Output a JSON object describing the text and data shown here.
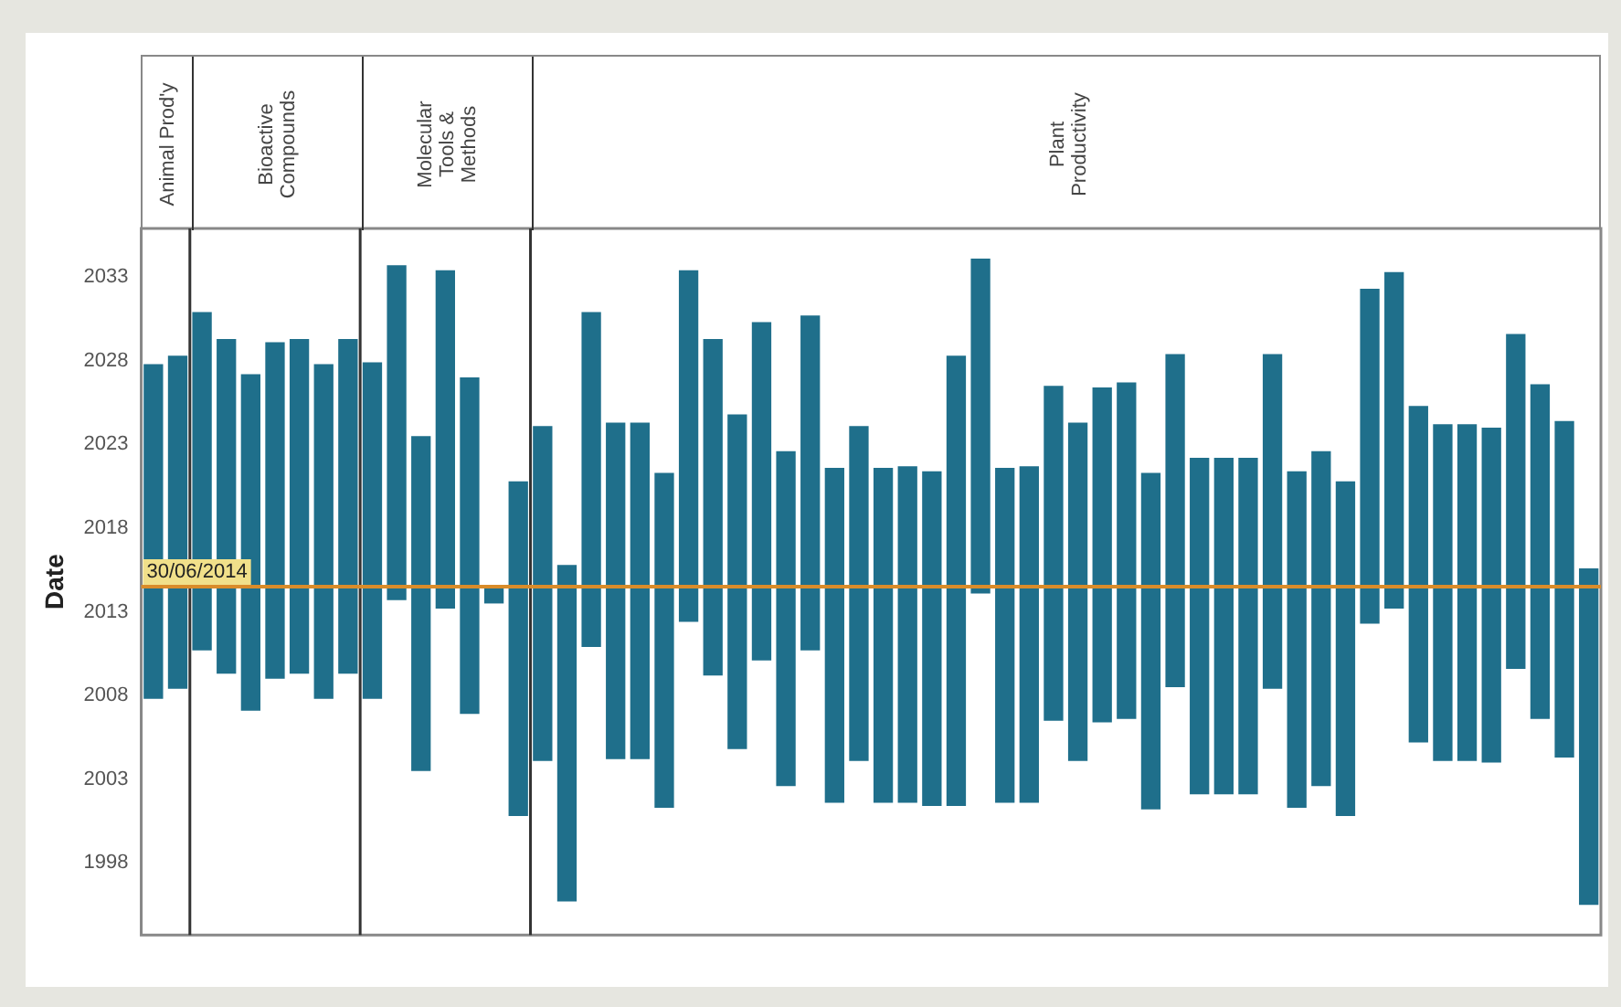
{
  "chart_data": {
    "type": "bar",
    "ylabel": "Date",
    "color": "#1f6f8b",
    "categories": [
      null,
      null,
      null,
      null,
      null,
      null,
      null,
      null,
      null,
      null,
      null,
      null,
      null,
      null,
      null,
      null,
      null,
      null,
      null,
      null,
      null,
      null,
      null,
      null,
      null,
      null,
      null,
      null,
      null,
      null,
      null,
      null,
      null,
      null,
      null,
      null,
      null,
      null,
      null,
      null,
      null,
      null,
      null,
      null,
      null,
      null,
      null,
      null,
      null,
      null,
      null,
      null,
      null,
      null,
      null,
      null,
      null,
      null,
      null,
      null
    ],
    "base": [
      2007.8,
      2008.4,
      2010.7,
      2009.3,
      2007.1,
      2009.0,
      2009.3,
      2007.8,
      2009.3,
      2007.8,
      2013.7,
      2003.5,
      2013.2,
      2006.9,
      2013.5,
      2000.8,
      2004.1,
      1995.7,
      2010.9,
      2004.2,
      2004.2,
      2001.3,
      2012.4,
      2009.2,
      2004.8,
      2010.1,
      2002.6,
      2010.7,
      2001.6,
      2004.1,
      2001.6,
      2001.6,
      2001.4,
      2001.4,
      2014.1,
      2001.6,
      2001.6,
      2006.5,
      2004.1,
      2006.4,
      2006.6,
      2001.2,
      2008.5,
      2002.1,
      2002.1,
      2002.1,
      2008.4,
      2001.3,
      2002.6,
      2000.8,
      2012.3,
      2013.2,
      2005.2,
      2004.1,
      2004.1,
      2004.0,
      2009.6,
      2006.6,
      2004.3,
      1995.5
    ],
    "values": [
      20.0,
      19.9,
      20.2,
      20.0,
      20.1,
      20.1,
      20.0,
      20.0,
      20.0,
      20.1,
      20.0,
      20.0,
      20.2,
      20.1,
      1.0,
      20.0,
      20.0,
      20.1,
      20.0,
      20.1,
      20.1,
      20.0,
      21.0,
      20.1,
      20.0,
      20.2,
      20.0,
      20.0,
      20.0,
      20.0,
      20.0,
      20.1,
      20.0,
      26.9,
      20.0,
      20.0,
      20.1,
      20.0,
      20.2,
      20.0,
      20.1,
      20.1,
      19.9,
      20.1,
      20.1,
      20.1,
      20.0,
      20.1,
      20.0,
      20.0,
      20.0,
      20.1,
      20.1,
      20.1,
      20.1,
      20.0,
      20.0,
      20.0,
      20.1,
      20.1
    ],
    "ylim": [
      1993.7,
      2035.9
    ],
    "yticks": [
      1998,
      2003,
      2008,
      2013,
      2018,
      2023,
      2028,
      2033
    ],
    "grid": false,
    "legend": false,
    "ref_lines": [
      {
        "axis": "y",
        "value": 2014.5,
        "label": "30/06/2014",
        "color": "#d98c2a"
      }
    ],
    "annotations": [
      "Animal Prod'y",
      "Bioactive\nCompounds",
      "Molecular\nTools &\nMethods",
      "Plant\nProductivity"
    ]
  }
}
